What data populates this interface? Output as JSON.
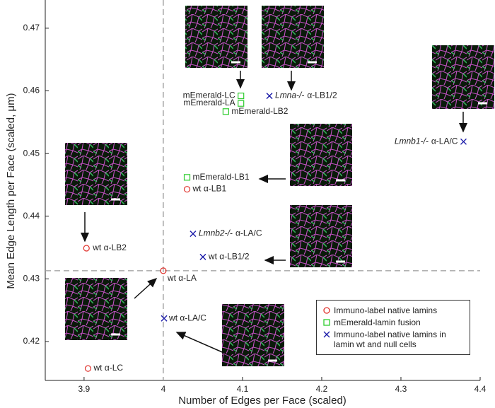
{
  "chart_data": {
    "type": "scatter",
    "x_label": "Number of Edges per Face (scaled)",
    "y_label": "Mean Edge Length per Face (scaled, μm)",
    "xlim": [
      3.851,
      4.4
    ],
    "ylim": [
      0.4138,
      0.4745
    ],
    "xticks": [
      3.9,
      4,
      4.1,
      4.2,
      4.3,
      4.4
    ],
    "yticks": [
      0.42,
      0.43,
      0.44,
      0.45,
      0.46,
      0.47
    ],
    "reference_x": 4,
    "reference_y": 0.4313,
    "series": [
      {
        "name": "Immuno-label native lamins",
        "color": "#e0302a",
        "marker": "circle",
        "x": [
          3.903,
          4.0,
          3.905,
          4.03
        ],
        "values": [
          0.4349,
          0.4313,
          0.4157,
          0.4443
        ],
        "labels": [
          "wt α-LB2",
          "wt α-LA",
          "wt α-LC",
          "wt α-LB1"
        ]
      },
      {
        "name": "mEmerald-lamin fusion",
        "color": "#2ecc2e",
        "marker": "square",
        "x": [
          4.098,
          4.098,
          4.079,
          4.03
        ],
        "values": [
          0.4592,
          0.458,
          0.4567,
          0.4462
        ],
        "labels": [
          "mEmerald-LC",
          "mEmerald-LA",
          "mEmerald-LB2",
          "mEmerald-LB1"
        ]
      },
      {
        "name": "Immuno-label native lamins in lamin wt and null cells",
        "color": "#1a1aa8",
        "marker": "cross",
        "x": [
          4.134,
          4.379,
          4.0375,
          4.05,
          4.001
        ],
        "values": [
          0.4592,
          0.4519,
          0.4372,
          0.4335,
          0.4237
        ],
        "genotypes": [
          "Lmna-/-",
          "Lmnb1-/-",
          "Lmnb2-/-",
          null,
          null
        ],
        "labels": [
          "α-LB1/2",
          "α-LA/C",
          "α-LA/C",
          "wt α-LB1/2",
          "wt α-LA/C"
        ]
      }
    ]
  }
}
